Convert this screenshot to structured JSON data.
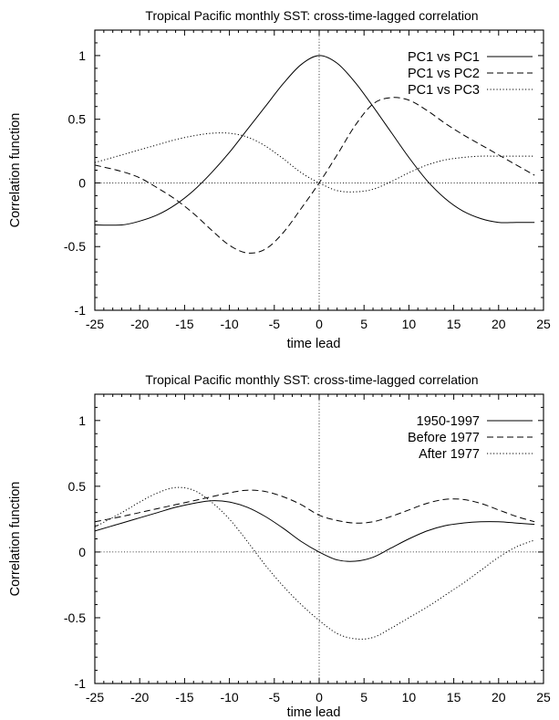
{
  "chart_data": [
    {
      "type": "line",
      "title": "Tropical Pacific monthly SST: cross-time-lagged correlation",
      "xlabel": "time lead",
      "ylabel": "Correlation function",
      "xlim": [
        -25,
        25
      ],
      "ylim": [
        -1,
        1.2
      ],
      "xticks": [
        "-25",
        "-20",
        "-15",
        "-10",
        "-5",
        "0",
        "5",
        "10",
        "15",
        "20",
        "25"
      ],
      "yticks": [
        "-1",
        "-0.5",
        "0",
        "0.5",
        "1"
      ],
      "legend_position": "top-right",
      "series": [
        {
          "name": "PC1 vs PC1",
          "dash": "solid",
          "x": [
            -25,
            -22,
            -20,
            -18,
            -16,
            -14,
            -12,
            -10,
            -8,
            -6,
            -4,
            -2,
            0,
            2,
            4,
            6,
            8,
            10,
            12,
            14,
            16,
            18,
            20,
            22,
            24
          ],
          "y": [
            -0.33,
            -0.33,
            -0.3,
            -0.25,
            -0.17,
            -0.06,
            0.08,
            0.24,
            0.42,
            0.6,
            0.78,
            0.93,
            1.0,
            0.94,
            0.79,
            0.6,
            0.4,
            0.2,
            0.02,
            -0.12,
            -0.22,
            -0.28,
            -0.31,
            -0.31,
            -0.31
          ]
        },
        {
          "name": "PC1 vs PC2",
          "dash": "dashed",
          "x": [
            -25,
            -22,
            -20,
            -18,
            -16,
            -14,
            -12,
            -10,
            -8,
            -6,
            -4,
            -2,
            0,
            2,
            4,
            6,
            8,
            10,
            12,
            14,
            16,
            18,
            20,
            22,
            24
          ],
          "y": [
            0.14,
            0.09,
            0.04,
            -0.04,
            -0.13,
            -0.24,
            -0.37,
            -0.49,
            -0.55,
            -0.52,
            -0.39,
            -0.2,
            0.0,
            0.22,
            0.45,
            0.62,
            0.67,
            0.65,
            0.57,
            0.47,
            0.38,
            0.3,
            0.22,
            0.14,
            0.06
          ]
        },
        {
          "name": "PC1 vs PC3",
          "dash": "dotted",
          "x": [
            -25,
            -22,
            -20,
            -18,
            -16,
            -14,
            -12,
            -10,
            -8,
            -6,
            -4,
            -2,
            0,
            2,
            4,
            6,
            8,
            10,
            12,
            14,
            16,
            18,
            20,
            22,
            24
          ],
          "y": [
            0.16,
            0.22,
            0.26,
            0.3,
            0.34,
            0.37,
            0.39,
            0.39,
            0.36,
            0.29,
            0.19,
            0.08,
            0.0,
            -0.06,
            -0.07,
            -0.05,
            0.01,
            0.08,
            0.14,
            0.18,
            0.2,
            0.21,
            0.21,
            0.21,
            0.21
          ]
        }
      ]
    },
    {
      "type": "line",
      "title": "Tropical Pacific monthly SST: cross-time-lagged correlation",
      "xlabel": "time lead",
      "ylabel": "Correlation function",
      "xlim": [
        -25,
        25
      ],
      "ylim": [
        -1,
        1.2
      ],
      "xticks": [
        "-25",
        "-20",
        "-15",
        "-10",
        "-5",
        "0",
        "5",
        "10",
        "15",
        "20",
        "25"
      ],
      "yticks": [
        "-1",
        "-0.5",
        "0",
        "0.5",
        "1"
      ],
      "legend_position": "top-right",
      "series": [
        {
          "name": "1950-1997",
          "dash": "solid",
          "x": [
            -25,
            -22,
            -20,
            -18,
            -16,
            -14,
            -12,
            -10,
            -8,
            -6,
            -4,
            -2,
            0,
            2,
            4,
            6,
            8,
            10,
            12,
            14,
            16,
            18,
            20,
            22,
            24
          ],
          "y": [
            0.16,
            0.22,
            0.26,
            0.3,
            0.34,
            0.37,
            0.39,
            0.38,
            0.34,
            0.27,
            0.18,
            0.08,
            0.0,
            -0.06,
            -0.07,
            -0.04,
            0.03,
            0.1,
            0.16,
            0.2,
            0.22,
            0.23,
            0.23,
            0.22,
            0.21
          ]
        },
        {
          "name": "Before 1977",
          "dash": "dashed",
          "x": [
            -25,
            -22,
            -20,
            -18,
            -16,
            -14,
            -12,
            -10,
            -8,
            -6,
            -4,
            -2,
            0,
            2,
            4,
            6,
            8,
            10,
            12,
            14,
            16,
            18,
            20,
            22,
            24
          ],
          "y": [
            0.23,
            0.27,
            0.3,
            0.33,
            0.36,
            0.39,
            0.42,
            0.45,
            0.47,
            0.46,
            0.42,
            0.36,
            0.28,
            0.24,
            0.22,
            0.23,
            0.27,
            0.32,
            0.37,
            0.4,
            0.4,
            0.37,
            0.32,
            0.27,
            0.23
          ]
        },
        {
          "name": "After 1977",
          "dash": "dotted",
          "x": [
            -25,
            -22,
            -20,
            -18,
            -16,
            -14,
            -12,
            -10,
            -8,
            -6,
            -4,
            -2,
            0,
            2,
            4,
            6,
            8,
            10,
            12,
            14,
            16,
            18,
            20,
            22,
            24
          ],
          "y": [
            0.19,
            0.3,
            0.38,
            0.45,
            0.49,
            0.47,
            0.38,
            0.25,
            0.08,
            -0.1,
            -0.26,
            -0.4,
            -0.52,
            -0.62,
            -0.66,
            -0.65,
            -0.58,
            -0.5,
            -0.42,
            -0.33,
            -0.24,
            -0.14,
            -0.04,
            0.04,
            0.09
          ]
        }
      ]
    }
  ]
}
